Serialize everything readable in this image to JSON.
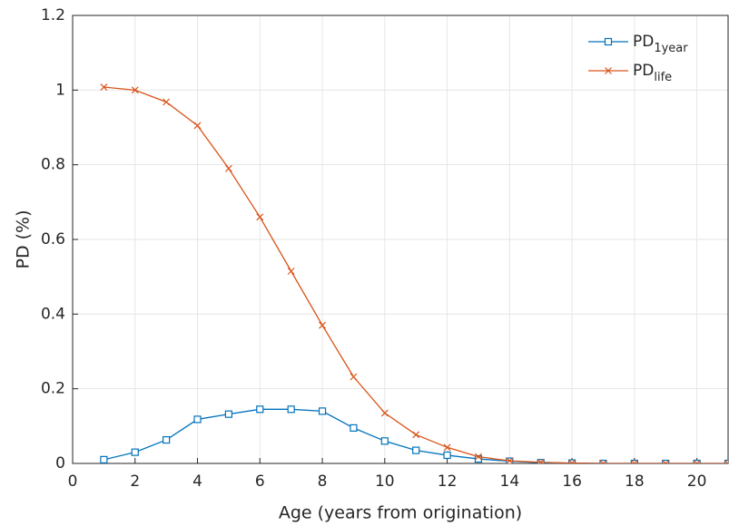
{
  "chart_data": {
    "type": "line",
    "xlabel": "Age (years from origination)",
    "ylabel": "PD (%)",
    "x": [
      1,
      2,
      3,
      4,
      5,
      6,
      7,
      8,
      9,
      10,
      11,
      12,
      13,
      14,
      15,
      16,
      17,
      18,
      19,
      20,
      21
    ],
    "series": [
      {
        "name": "PD",
        "name_sub": "1year",
        "color": "#0072BD",
        "marker": "square",
        "values": [
          0.01,
          0.03,
          0.063,
          0.118,
          0.132,
          0.145,
          0.145,
          0.14,
          0.095,
          0.06,
          0.035,
          0.022,
          0.012,
          0.006,
          0.002,
          0.001,
          0,
          0,
          0,
          0,
          0
        ]
      },
      {
        "name": "PD",
        "name_sub": "life",
        "color": "#D95319",
        "marker": "x",
        "values": [
          1.008,
          1.0,
          0.968,
          0.905,
          0.79,
          0.66,
          0.515,
          0.37,
          0.232,
          0.135,
          0.077,
          0.043,
          0.018,
          0.007,
          0.003,
          0.001,
          0,
          0,
          0,
          0,
          0
        ]
      }
    ],
    "xlim": [
      0,
      21
    ],
    "ylim": [
      0,
      1.2
    ],
    "xticks": [
      0,
      2,
      4,
      6,
      8,
      10,
      12,
      14,
      16,
      18,
      20
    ],
    "yticks": [
      0,
      0.2,
      0.4,
      0.6,
      0.8,
      1,
      1.2
    ],
    "grid": true,
    "legend": "top-right"
  }
}
